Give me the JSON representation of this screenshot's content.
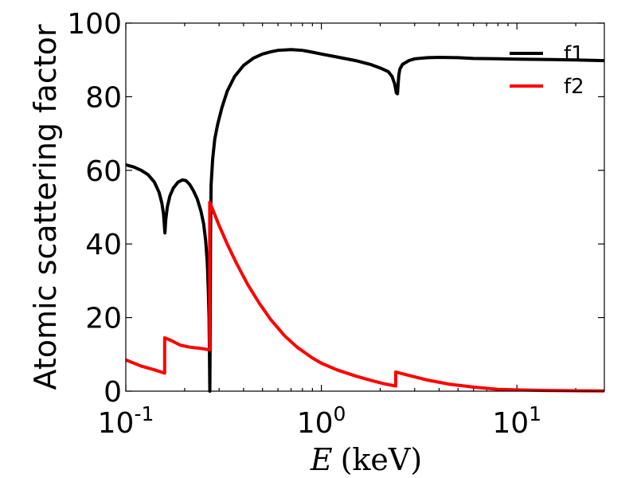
{
  "chart_data": {
    "type": "line",
    "xscale": "log",
    "xlim": [
      0.1,
      28
    ],
    "ylim": [
      0,
      100
    ],
    "ylabel": "Atomic scattering factor",
    "xlabel": {
      "var": "E",
      "unit": "(keV)"
    },
    "yticks": [
      0,
      20,
      40,
      60,
      80,
      100
    ],
    "xticks": [
      {
        "value": 0.1,
        "base": "10",
        "exp": "-1"
      },
      {
        "value": 1,
        "base": "10",
        "exp": "0"
      },
      {
        "value": 10,
        "base": "10",
        "exp": "1"
      }
    ],
    "grid": false,
    "legend_position": "top-right",
    "series": [
      {
        "name": "f1",
        "color": "#000000",
        "x": [
          0.1,
          0.11,
          0.12,
          0.13,
          0.14,
          0.148,
          0.153,
          0.156,
          0.1575,
          0.1585,
          0.16,
          0.163,
          0.168,
          0.175,
          0.185,
          0.195,
          0.203,
          0.212,
          0.222,
          0.232,
          0.242,
          0.25,
          0.256,
          0.261,
          0.264,
          0.2665,
          0.2678,
          0.269,
          0.27,
          0.2712,
          0.273,
          0.278,
          0.285,
          0.295,
          0.31,
          0.33,
          0.36,
          0.4,
          0.45,
          0.5,
          0.55,
          0.6,
          0.7,
          0.8,
          0.9,
          1.0,
          1.2,
          1.5,
          1.8,
          2.0,
          2.2,
          2.3,
          2.37,
          2.42,
          2.45,
          2.47,
          2.49,
          2.52,
          2.6,
          2.8,
          3.0,
          3.5,
          4.0,
          5.0,
          6.0,
          8.0,
          10,
          15,
          20,
          28
        ],
        "y": [
          61.5,
          60.9,
          60,
          58.8,
          56.8,
          54,
          51,
          48,
          45,
          43,
          46.5,
          50,
          53,
          55.2,
          56.8,
          57.4,
          57.2,
          56.2,
          54.4,
          52.2,
          49,
          45.5,
          41,
          35,
          28,
          20,
          10,
          0,
          15,
          42,
          56,
          63,
          68.5,
          72.5,
          77,
          81.5,
          85.5,
          88.5,
          90.5,
          91.6,
          92.2,
          92.6,
          92.8,
          92.6,
          92.1,
          91.6,
          90.8,
          89.8,
          88.7,
          87.8,
          86.8,
          85.5,
          83.5,
          81,
          80.8,
          83.5,
          85.8,
          87.5,
          88.8,
          89.8,
          90.3,
          90.6,
          90.7,
          90.6,
          90.4,
          90.3,
          90.2,
          90.1,
          90.0,
          89.8
        ]
      },
      {
        "name": "f2",
        "color": "#ff0000",
        "x": [
          0.1,
          0.12,
          0.14,
          0.158,
          0.1581,
          0.17,
          0.19,
          0.21,
          0.25,
          0.2685,
          0.2686,
          0.28,
          0.3,
          0.33,
          0.37,
          0.42,
          0.48,
          0.55,
          0.65,
          0.75,
          0.9,
          1.0,
          1.2,
          1.5,
          1.8,
          2.1,
          2.4,
          2.4001,
          2.8,
          3.5,
          4.5,
          6.0,
          8.0,
          10,
          14,
          20,
          28
        ],
        "y": [
          8.5,
          6.8,
          5.8,
          4.9,
          14.5,
          13.8,
          12.5,
          12.0,
          11.5,
          11.2,
          51.3,
          49,
          45,
          40,
          34.5,
          29,
          24,
          19.5,
          15,
          12,
          9,
          7.6,
          5.8,
          4.1,
          2.9,
          2.0,
          1.4,
          5.2,
          4.3,
          3.0,
          1.9,
          1.1,
          0.5,
          0.35,
          0.2,
          0.1,
          0.05
        ]
      }
    ]
  }
}
